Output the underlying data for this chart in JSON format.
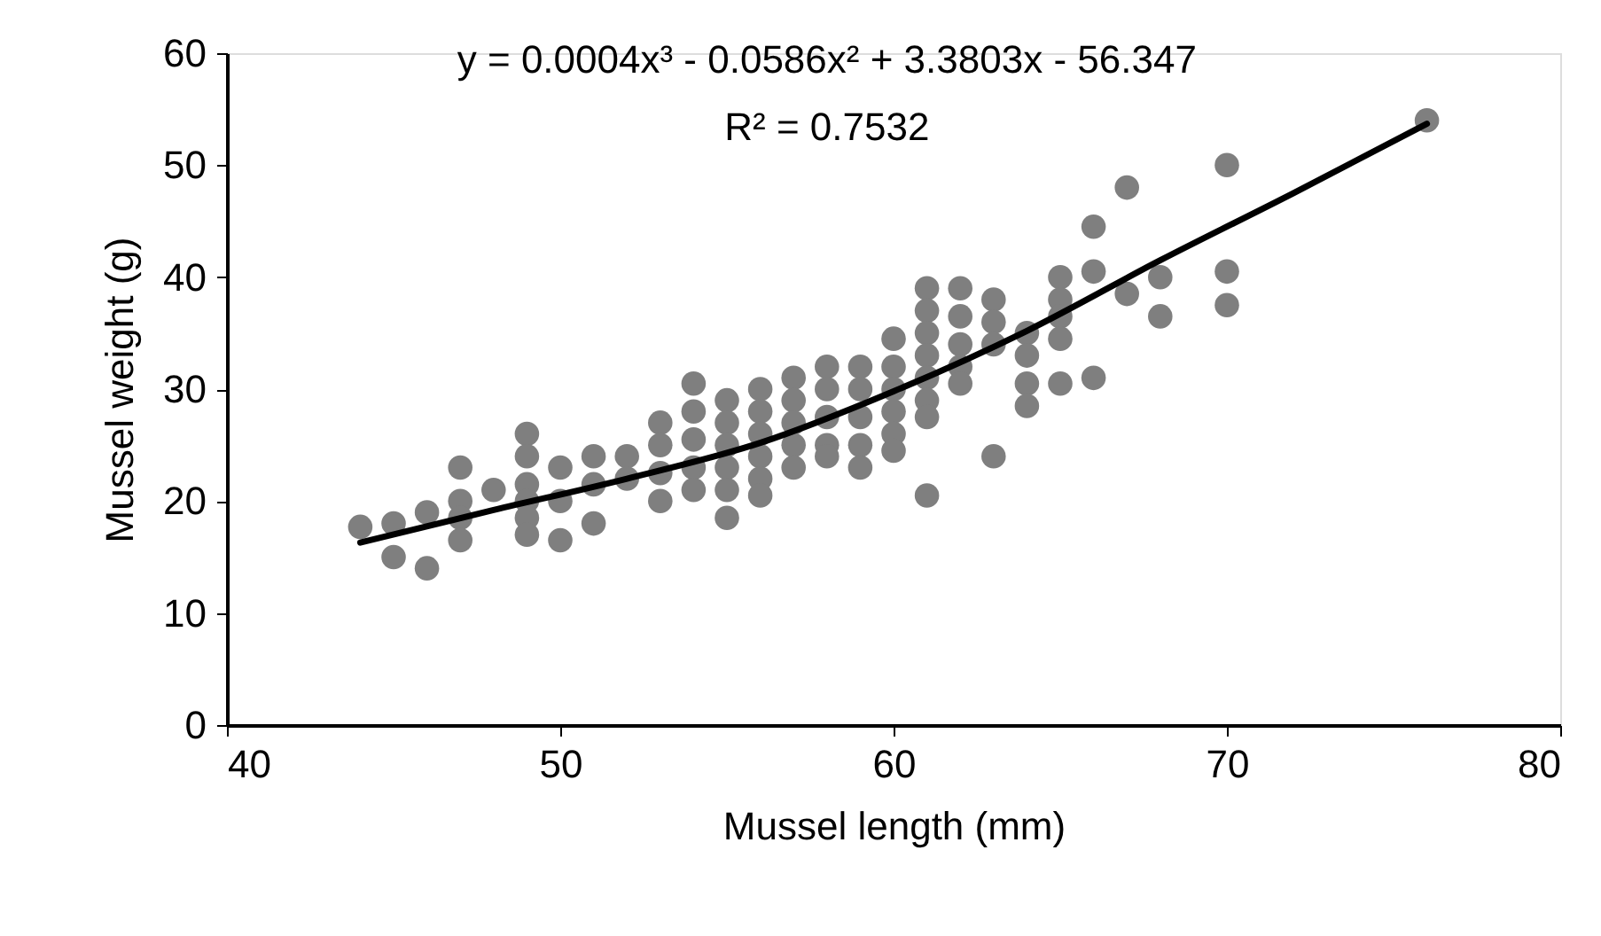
{
  "chart_data": {
    "type": "scatter",
    "xlabel": "Mussel length (mm)",
    "ylabel": "Mussel weight (g)",
    "xlim": [
      40,
      80
    ],
    "xticks": [
      40,
      50,
      60,
      70,
      80
    ],
    "ylim": [
      0,
      60
    ],
    "yticks": [
      0,
      10,
      20,
      30,
      40,
      50,
      60
    ],
    "grid": false,
    "marker": "circle",
    "annotations": [
      "y = 0.0004x³ - 0.0586x² + 3.3803x - 56.347",
      "R² = 0.7532"
    ],
    "series": [
      {
        "color": "#7f7f7f",
        "x": [
          44,
          45,
          45,
          46,
          46,
          47,
          47,
          47,
          47,
          48,
          49,
          49,
          49,
          49,
          49,
          49,
          50,
          50,
          50,
          51,
          51,
          51,
          52,
          52,
          53,
          53,
          53,
          53,
          54,
          54,
          54,
          54,
          54,
          55,
          55,
          55,
          55,
          55,
          55,
          56,
          56,
          56,
          56,
          56,
          56,
          57,
          57,
          57,
          57,
          57,
          58,
          58,
          58,
          58,
          58,
          59,
          59,
          59,
          59,
          59,
          60,
          60,
          60,
          60,
          60,
          60,
          61,
          61,
          61,
          61,
          61,
          61,
          61,
          61,
          62,
          62,
          62,
          62,
          62,
          63,
          63,
          63,
          63,
          64,
          64,
          64,
          64,
          65,
          65,
          65,
          65,
          65,
          66,
          66,
          66,
          67,
          67,
          68,
          68,
          70,
          70,
          70,
          76
        ],
        "values": [
          17.7,
          18,
          15,
          19,
          14,
          23,
          20,
          18.5,
          16.5,
          21,
          26,
          24,
          21.5,
          20,
          18.5,
          17,
          23,
          20,
          16.5,
          24,
          21.5,
          18,
          24,
          22,
          27,
          25,
          22.5,
          20,
          30.5,
          28,
          25.5,
          23,
          21,
          29,
          27,
          25,
          23,
          21,
          18.5,
          30,
          28,
          26,
          24,
          22,
          20.5,
          31,
          29,
          27,
          25,
          23,
          32,
          30,
          27.5,
          25,
          24,
          32,
          30,
          27.5,
          25,
          23,
          34.5,
          32,
          30,
          28,
          26,
          24.5,
          39,
          37,
          35,
          33,
          31,
          29,
          27.5,
          20.5,
          39,
          36.5,
          34,
          32,
          30.5,
          38,
          36,
          34,
          24,
          35,
          33,
          30.5,
          28.5,
          40,
          38,
          36.5,
          34.5,
          30.5,
          44.5,
          40.5,
          31,
          48,
          38.5,
          40,
          36.5,
          50,
          40.5,
          37.5,
          54
        ]
      },
      {
        "type": "line",
        "color": "#000000",
        "line_style": "solid",
        "marker": "none",
        "x": [
          44,
          48,
          52,
          56,
          60,
          64,
          68,
          72,
          76
        ],
        "values": [
          16.3,
          19.2,
          22,
          25.2,
          29.8,
          35.2,
          41.5,
          47.5,
          53.7
        ]
      }
    ]
  }
}
